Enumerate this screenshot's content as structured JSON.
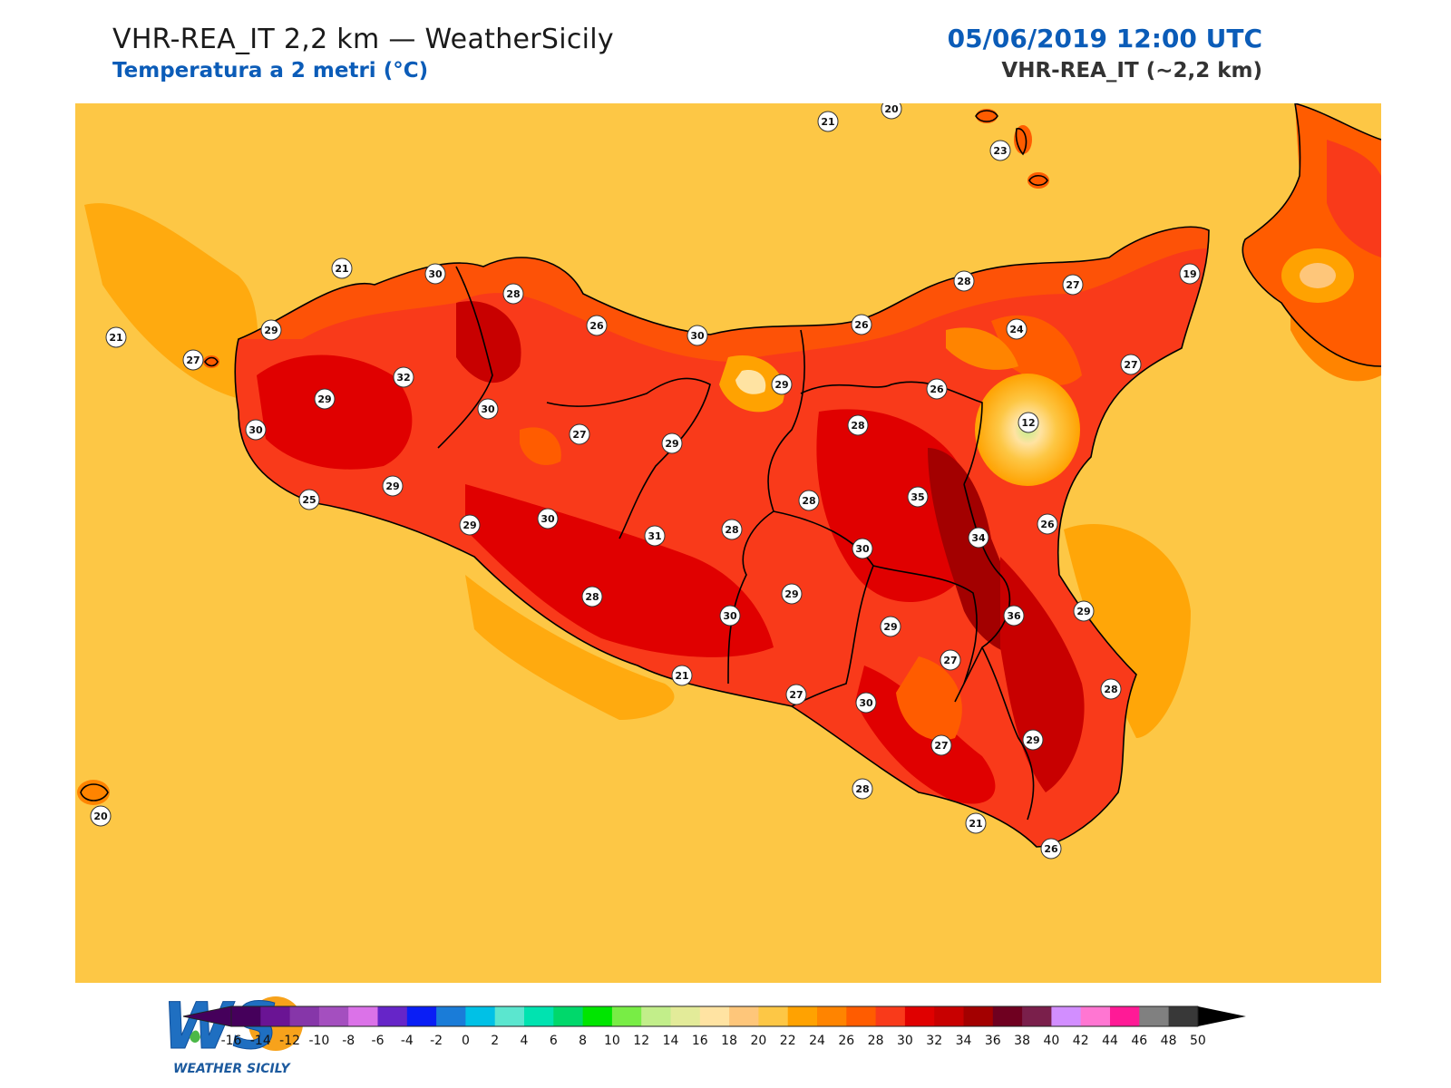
{
  "header": {
    "title": "VHR-REA_IT 2,2 km — WeatherSicily",
    "subtitle": "Temperatura a 2 metri (°C)",
    "datetime": "05/06/2019 12:00 UTC",
    "model": "VHR-REA_IT (~2,2 km)"
  },
  "logo": {
    "letters": "WS",
    "text": "WEATHER SICILY"
  },
  "colors": {
    "sea": "#FDC745",
    "land_base": "#F93A1A",
    "border": "#000000"
  },
  "station_labels": [
    {
      "v": "21"
    },
    {
      "v": "20"
    },
    {
      "v": "23"
    },
    {
      "v": "21"
    },
    {
      "v": "30"
    },
    {
      "v": "28"
    },
    {
      "v": "29"
    },
    {
      "v": "21"
    },
    {
      "v": "27"
    },
    {
      "v": "32"
    },
    {
      "v": "29"
    },
    {
      "v": "30"
    },
    {
      "v": "26"
    },
    {
      "v": "30"
    },
    {
      "v": "28"
    },
    {
      "v": "27"
    },
    {
      "v": "19"
    },
    {
      "v": "26"
    },
    {
      "v": "24"
    },
    {
      "v": "27"
    },
    {
      "v": "29"
    },
    {
      "v": "26"
    },
    {
      "v": "28"
    },
    {
      "v": "12"
    },
    {
      "v": "30"
    },
    {
      "v": "27"
    },
    {
      "v": "29"
    },
    {
      "v": "25"
    },
    {
      "v": "29"
    },
    {
      "v": "29"
    },
    {
      "v": "30"
    },
    {
      "v": "31"
    },
    {
      "v": "28"
    },
    {
      "v": "28"
    },
    {
      "v": "35"
    },
    {
      "v": "26"
    },
    {
      "v": "34"
    },
    {
      "v": "30"
    },
    {
      "v": "28"
    },
    {
      "v": "29"
    },
    {
      "v": "30"
    },
    {
      "v": "29"
    },
    {
      "v": "36"
    },
    {
      "v": "29"
    },
    {
      "v": "27"
    },
    {
      "v": "21"
    },
    {
      "v": "27"
    },
    {
      "v": "30"
    },
    {
      "v": "28"
    },
    {
      "v": "27"
    },
    {
      "v": "29"
    },
    {
      "v": "28"
    },
    {
      "v": "21"
    },
    {
      "v": "26"
    },
    {
      "v": "20"
    }
  ],
  "colorbar": {
    "ticks": [
      "-16",
      "-14",
      "-12",
      "-10",
      "-8",
      "-6",
      "-4",
      "-2",
      "0",
      "2",
      "4",
      "6",
      "8",
      "10",
      "12",
      "14",
      "16",
      "18",
      "20",
      "22",
      "24",
      "26",
      "28",
      "30",
      "32",
      "34",
      "36",
      "38",
      "40",
      "42",
      "44",
      "46",
      "48",
      "50"
    ],
    "colors": [
      "#45005B",
      "#6A1494",
      "#8636A9",
      "#A44FBF",
      "#DB72E8",
      "#6625C8",
      "#0A1EF5",
      "#1A7CD8",
      "#00C1E6",
      "#5BE6CF",
      "#00E3B0",
      "#00D86B",
      "#00E500",
      "#78ED45",
      "#C2EE8A",
      "#E3EB99",
      "#FFE3A2",
      "#FEC67A",
      "#FDC745",
      "#FFA201",
      "#FF8400",
      "#FF5C00",
      "#F93A1A",
      "#E00000",
      "#C80000",
      "#A30000",
      "#6F0020",
      "#7A1F4B",
      "#D28EFF",
      "#FF76D2",
      "#FF1A96",
      "#808080",
      "#383838"
    ]
  }
}
